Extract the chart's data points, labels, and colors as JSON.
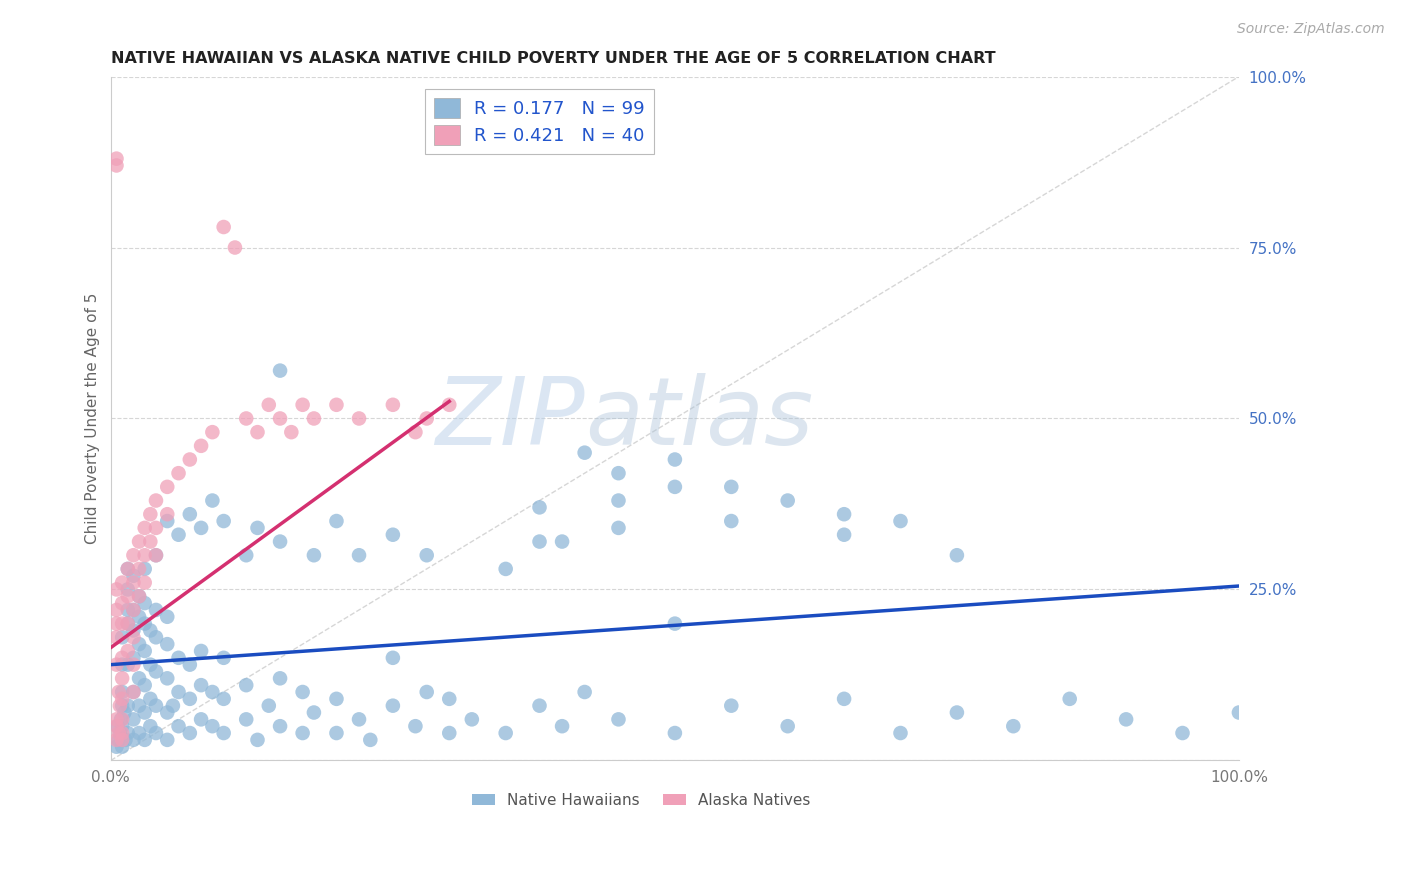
{
  "title": "NATIVE HAWAIIAN VS ALASKA NATIVE CHILD POVERTY UNDER THE AGE OF 5 CORRELATION CHART",
  "source": "Source: ZipAtlas.com",
  "ylabel": "Child Poverty Under the Age of 5",
  "xlim": [
    0,
    1
  ],
  "ylim": [
    0,
    1
  ],
  "hawaiian_color": "#90b8d8",
  "alaska_color": "#f0a0b8",
  "hawaiian_line_color": "#1a4cc0",
  "alaska_line_color": "#d43070",
  "diagonal_color": "#cccccc",
  "watermark_zip": "ZIP",
  "watermark_atlas": "atlas",
  "hawaiian_points": [
    [
      0.005,
      0.02
    ],
    [
      0.006,
      0.05
    ],
    [
      0.007,
      0.03
    ],
    [
      0.008,
      0.04
    ],
    [
      0.009,
      0.06
    ],
    [
      0.01,
      0.02
    ],
    [
      0.01,
      0.05
    ],
    [
      0.01,
      0.08
    ],
    [
      0.01,
      0.1
    ],
    [
      0.01,
      0.14
    ],
    [
      0.01,
      0.18
    ],
    [
      0.012,
      0.07
    ],
    [
      0.013,
      0.03
    ],
    [
      0.015,
      0.04
    ],
    [
      0.015,
      0.08
    ],
    [
      0.015,
      0.14
    ],
    [
      0.015,
      0.2
    ],
    [
      0.015,
      0.22
    ],
    [
      0.015,
      0.25
    ],
    [
      0.015,
      0.28
    ],
    [
      0.02,
      0.03
    ],
    [
      0.02,
      0.06
    ],
    [
      0.02,
      0.1
    ],
    [
      0.02,
      0.15
    ],
    [
      0.02,
      0.19
    ],
    [
      0.02,
      0.22
    ],
    [
      0.02,
      0.27
    ],
    [
      0.025,
      0.04
    ],
    [
      0.025,
      0.08
    ],
    [
      0.025,
      0.12
    ],
    [
      0.025,
      0.17
    ],
    [
      0.025,
      0.21
    ],
    [
      0.025,
      0.24
    ],
    [
      0.03,
      0.03
    ],
    [
      0.03,
      0.07
    ],
    [
      0.03,
      0.11
    ],
    [
      0.03,
      0.16
    ],
    [
      0.03,
      0.2
    ],
    [
      0.03,
      0.23
    ],
    [
      0.035,
      0.05
    ],
    [
      0.035,
      0.09
    ],
    [
      0.035,
      0.14
    ],
    [
      0.035,
      0.19
    ],
    [
      0.04,
      0.04
    ],
    [
      0.04,
      0.08
    ],
    [
      0.04,
      0.13
    ],
    [
      0.04,
      0.18
    ],
    [
      0.04,
      0.22
    ],
    [
      0.05,
      0.03
    ],
    [
      0.05,
      0.07
    ],
    [
      0.05,
      0.12
    ],
    [
      0.05,
      0.17
    ],
    [
      0.05,
      0.21
    ],
    [
      0.055,
      0.08
    ],
    [
      0.06,
      0.05
    ],
    [
      0.06,
      0.1
    ],
    [
      0.06,
      0.15
    ],
    [
      0.07,
      0.04
    ],
    [
      0.07,
      0.09
    ],
    [
      0.07,
      0.14
    ],
    [
      0.08,
      0.06
    ],
    [
      0.08,
      0.11
    ],
    [
      0.08,
      0.16
    ],
    [
      0.09,
      0.05
    ],
    [
      0.09,
      0.1
    ],
    [
      0.1,
      0.04
    ],
    [
      0.1,
      0.09
    ],
    [
      0.1,
      0.15
    ],
    [
      0.12,
      0.06
    ],
    [
      0.12,
      0.11
    ],
    [
      0.13,
      0.03
    ],
    [
      0.14,
      0.08
    ],
    [
      0.15,
      0.05
    ],
    [
      0.15,
      0.12
    ],
    [
      0.17,
      0.04
    ],
    [
      0.17,
      0.1
    ],
    [
      0.18,
      0.07
    ],
    [
      0.2,
      0.04
    ],
    [
      0.2,
      0.09
    ],
    [
      0.22,
      0.06
    ],
    [
      0.23,
      0.03
    ],
    [
      0.25,
      0.08
    ],
    [
      0.25,
      0.15
    ],
    [
      0.27,
      0.05
    ],
    [
      0.28,
      0.1
    ],
    [
      0.3,
      0.04
    ],
    [
      0.3,
      0.09
    ],
    [
      0.32,
      0.06
    ],
    [
      0.35,
      0.04
    ],
    [
      0.38,
      0.08
    ],
    [
      0.4,
      0.05
    ],
    [
      0.42,
      0.1
    ],
    [
      0.45,
      0.06
    ],
    [
      0.5,
      0.04
    ],
    [
      0.5,
      0.2
    ],
    [
      0.55,
      0.08
    ],
    [
      0.6,
      0.05
    ],
    [
      0.65,
      0.09
    ],
    [
      0.7,
      0.04
    ],
    [
      0.75,
      0.07
    ],
    [
      0.8,
      0.05
    ],
    [
      0.85,
      0.09
    ],
    [
      0.9,
      0.06
    ],
    [
      0.95,
      0.04
    ],
    [
      1.0,
      0.07
    ],
    [
      0.15,
      0.57
    ],
    [
      0.38,
      0.37
    ],
    [
      0.38,
      0.32
    ],
    [
      0.45,
      0.38
    ],
    [
      0.45,
      0.34
    ],
    [
      0.55,
      0.35
    ],
    [
      0.55,
      0.4
    ],
    [
      0.6,
      0.38
    ],
    [
      0.65,
      0.36
    ],
    [
      0.65,
      0.33
    ],
    [
      0.7,
      0.35
    ],
    [
      0.75,
      0.3
    ],
    [
      0.5,
      0.44
    ],
    [
      0.5,
      0.4
    ],
    [
      0.45,
      0.42
    ],
    [
      0.42,
      0.45
    ],
    [
      0.4,
      0.32
    ],
    [
      0.35,
      0.28
    ],
    [
      0.28,
      0.3
    ],
    [
      0.25,
      0.33
    ],
    [
      0.22,
      0.3
    ],
    [
      0.2,
      0.35
    ],
    [
      0.18,
      0.3
    ],
    [
      0.15,
      0.32
    ],
    [
      0.13,
      0.34
    ],
    [
      0.12,
      0.3
    ],
    [
      0.1,
      0.35
    ],
    [
      0.09,
      0.38
    ],
    [
      0.08,
      0.34
    ],
    [
      0.07,
      0.36
    ],
    [
      0.06,
      0.33
    ],
    [
      0.05,
      0.35
    ],
    [
      0.04,
      0.3
    ],
    [
      0.03,
      0.28
    ]
  ],
  "alaska_points": [
    [
      0.005,
      0.87
    ],
    [
      0.005,
      0.88
    ],
    [
      0.005,
      0.25
    ],
    [
      0.005,
      0.22
    ],
    [
      0.005,
      0.2
    ],
    [
      0.005,
      0.18
    ],
    [
      0.005,
      0.14
    ],
    [
      0.007,
      0.1
    ],
    [
      0.008,
      0.08
    ],
    [
      0.01,
      0.26
    ],
    [
      0.01,
      0.23
    ],
    [
      0.01,
      0.2
    ],
    [
      0.01,
      0.15
    ],
    [
      0.01,
      0.12
    ],
    [
      0.01,
      0.09
    ],
    [
      0.01,
      0.06
    ],
    [
      0.01,
      0.04
    ],
    [
      0.015,
      0.28
    ],
    [
      0.015,
      0.24
    ],
    [
      0.015,
      0.2
    ],
    [
      0.015,
      0.16
    ],
    [
      0.02,
      0.3
    ],
    [
      0.02,
      0.26
    ],
    [
      0.02,
      0.22
    ],
    [
      0.02,
      0.18
    ],
    [
      0.02,
      0.14
    ],
    [
      0.02,
      0.1
    ],
    [
      0.025,
      0.32
    ],
    [
      0.025,
      0.28
    ],
    [
      0.025,
      0.24
    ],
    [
      0.03,
      0.34
    ],
    [
      0.03,
      0.3
    ],
    [
      0.03,
      0.26
    ],
    [
      0.035,
      0.36
    ],
    [
      0.035,
      0.32
    ],
    [
      0.04,
      0.38
    ],
    [
      0.04,
      0.34
    ],
    [
      0.04,
      0.3
    ],
    [
      0.05,
      0.4
    ],
    [
      0.05,
      0.36
    ],
    [
      0.06,
      0.42
    ],
    [
      0.07,
      0.44
    ],
    [
      0.08,
      0.46
    ],
    [
      0.09,
      0.48
    ],
    [
      0.1,
      0.78
    ],
    [
      0.11,
      0.75
    ],
    [
      0.12,
      0.5
    ],
    [
      0.13,
      0.48
    ],
    [
      0.14,
      0.52
    ],
    [
      0.15,
      0.5
    ],
    [
      0.16,
      0.48
    ],
    [
      0.17,
      0.52
    ],
    [
      0.18,
      0.5
    ],
    [
      0.2,
      0.52
    ],
    [
      0.22,
      0.5
    ],
    [
      0.25,
      0.52
    ],
    [
      0.27,
      0.48
    ],
    [
      0.28,
      0.5
    ],
    [
      0.3,
      0.52
    ],
    [
      0.005,
      0.03
    ],
    [
      0.005,
      0.05
    ],
    [
      0.005,
      0.06
    ],
    [
      0.007,
      0.04
    ],
    [
      0.01,
      0.03
    ]
  ],
  "haw_line": [
    [
      0.0,
      0.14
    ],
    [
      1.0,
      0.255
    ]
  ],
  "ak_line": [
    [
      0.0,
      0.165
    ],
    [
      0.3,
      0.525
    ]
  ]
}
